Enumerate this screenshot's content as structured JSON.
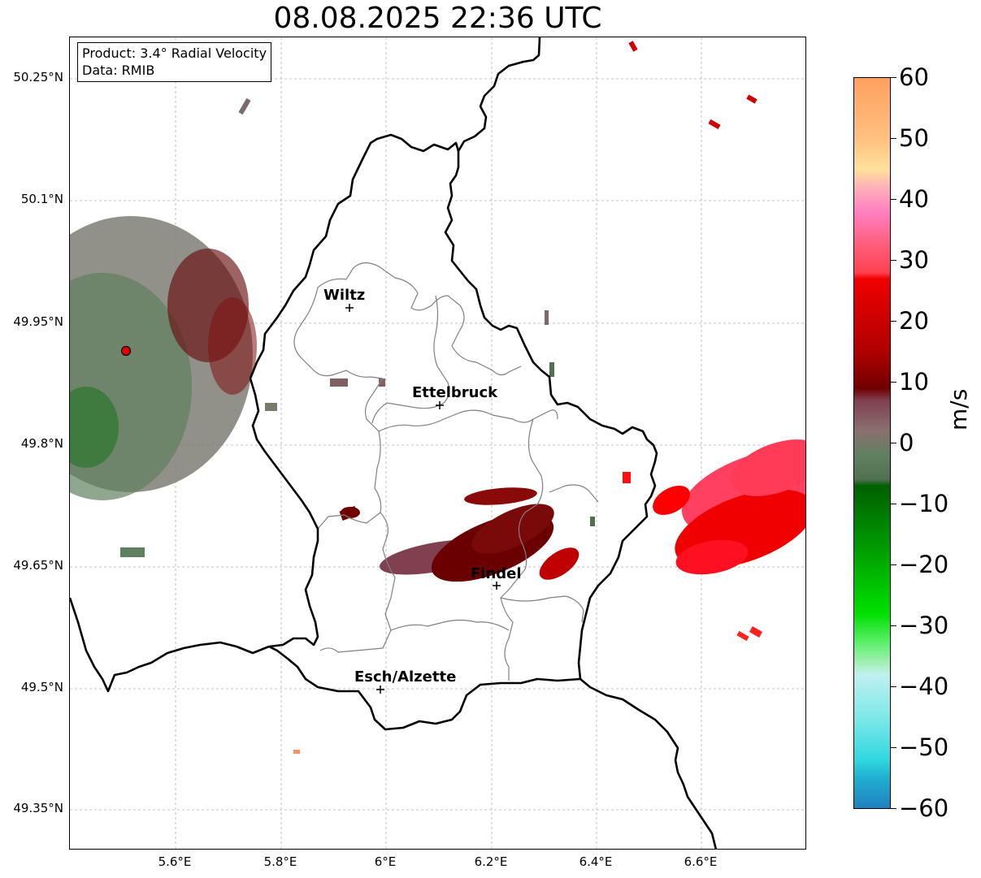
{
  "title": "08.08.2025 22:36 UTC",
  "info": {
    "product": "Product: 3.4° Radial Velocity",
    "data": "Data: RMIB"
  },
  "map": {
    "lat_ticks": [
      "50.25°N",
      "50.1°N",
      "49.95°N",
      "49.8°N",
      "49.65°N",
      "49.5°N",
      "49.35°N"
    ],
    "lon_ticks": [
      "5.6°E",
      "5.8°E",
      "6°E",
      "6.2°E",
      "6.4°E",
      "6.6°E"
    ],
    "cities": [
      {
        "name": "Wiltz"
      },
      {
        "name": "Ettelbruck"
      },
      {
        "name": "Findel"
      },
      {
        "name": "Esch/Alzette"
      }
    ],
    "radar_site_color": "#e00000",
    "border_color": "#000000",
    "canton_color": "#808080",
    "grid_color": "#b0b0b0"
  },
  "colorbar": {
    "label": "m/s",
    "ticks": [
      "60",
      "50",
      "40",
      "30",
      "20",
      "10",
      "0",
      "−10",
      "−20",
      "−30",
      "−40",
      "−50",
      "−60"
    ],
    "min": -60,
    "max": 60,
    "stops": [
      {
        "v": 60,
        "c": "#ffa060"
      },
      {
        "v": 50,
        "c": "#ffc080"
      },
      {
        "v": 45,
        "c": "#ffe09a"
      },
      {
        "v": 42,
        "c": "#ffb0b8"
      },
      {
        "v": 38,
        "c": "#ff80c0"
      },
      {
        "v": 33,
        "c": "#ff6080"
      },
      {
        "v": 28,
        "c": "#ff4050"
      },
      {
        "v": 27,
        "c": "#f00000"
      },
      {
        "v": 15,
        "c": "#b00000"
      },
      {
        "v": 9,
        "c": "#700000"
      },
      {
        "v": 7,
        "c": "#804050"
      },
      {
        "v": 2,
        "c": "#8a7070"
      },
      {
        "v": -2,
        "c": "#608060"
      },
      {
        "v": -6,
        "c": "#507050"
      },
      {
        "v": -7,
        "c": "#006000"
      },
      {
        "v": -18,
        "c": "#00a000"
      },
      {
        "v": -28,
        "c": "#00e000"
      },
      {
        "v": -33,
        "c": "#60f070"
      },
      {
        "v": -36,
        "c": "#a0f0b0"
      },
      {
        "v": -38,
        "c": "#c0f0f0"
      },
      {
        "v": -45,
        "c": "#80e8e8"
      },
      {
        "v": -52,
        "c": "#30d8e0"
      },
      {
        "v": -55,
        "c": "#20b0d0"
      },
      {
        "v": -60,
        "c": "#2080c0"
      }
    ]
  }
}
